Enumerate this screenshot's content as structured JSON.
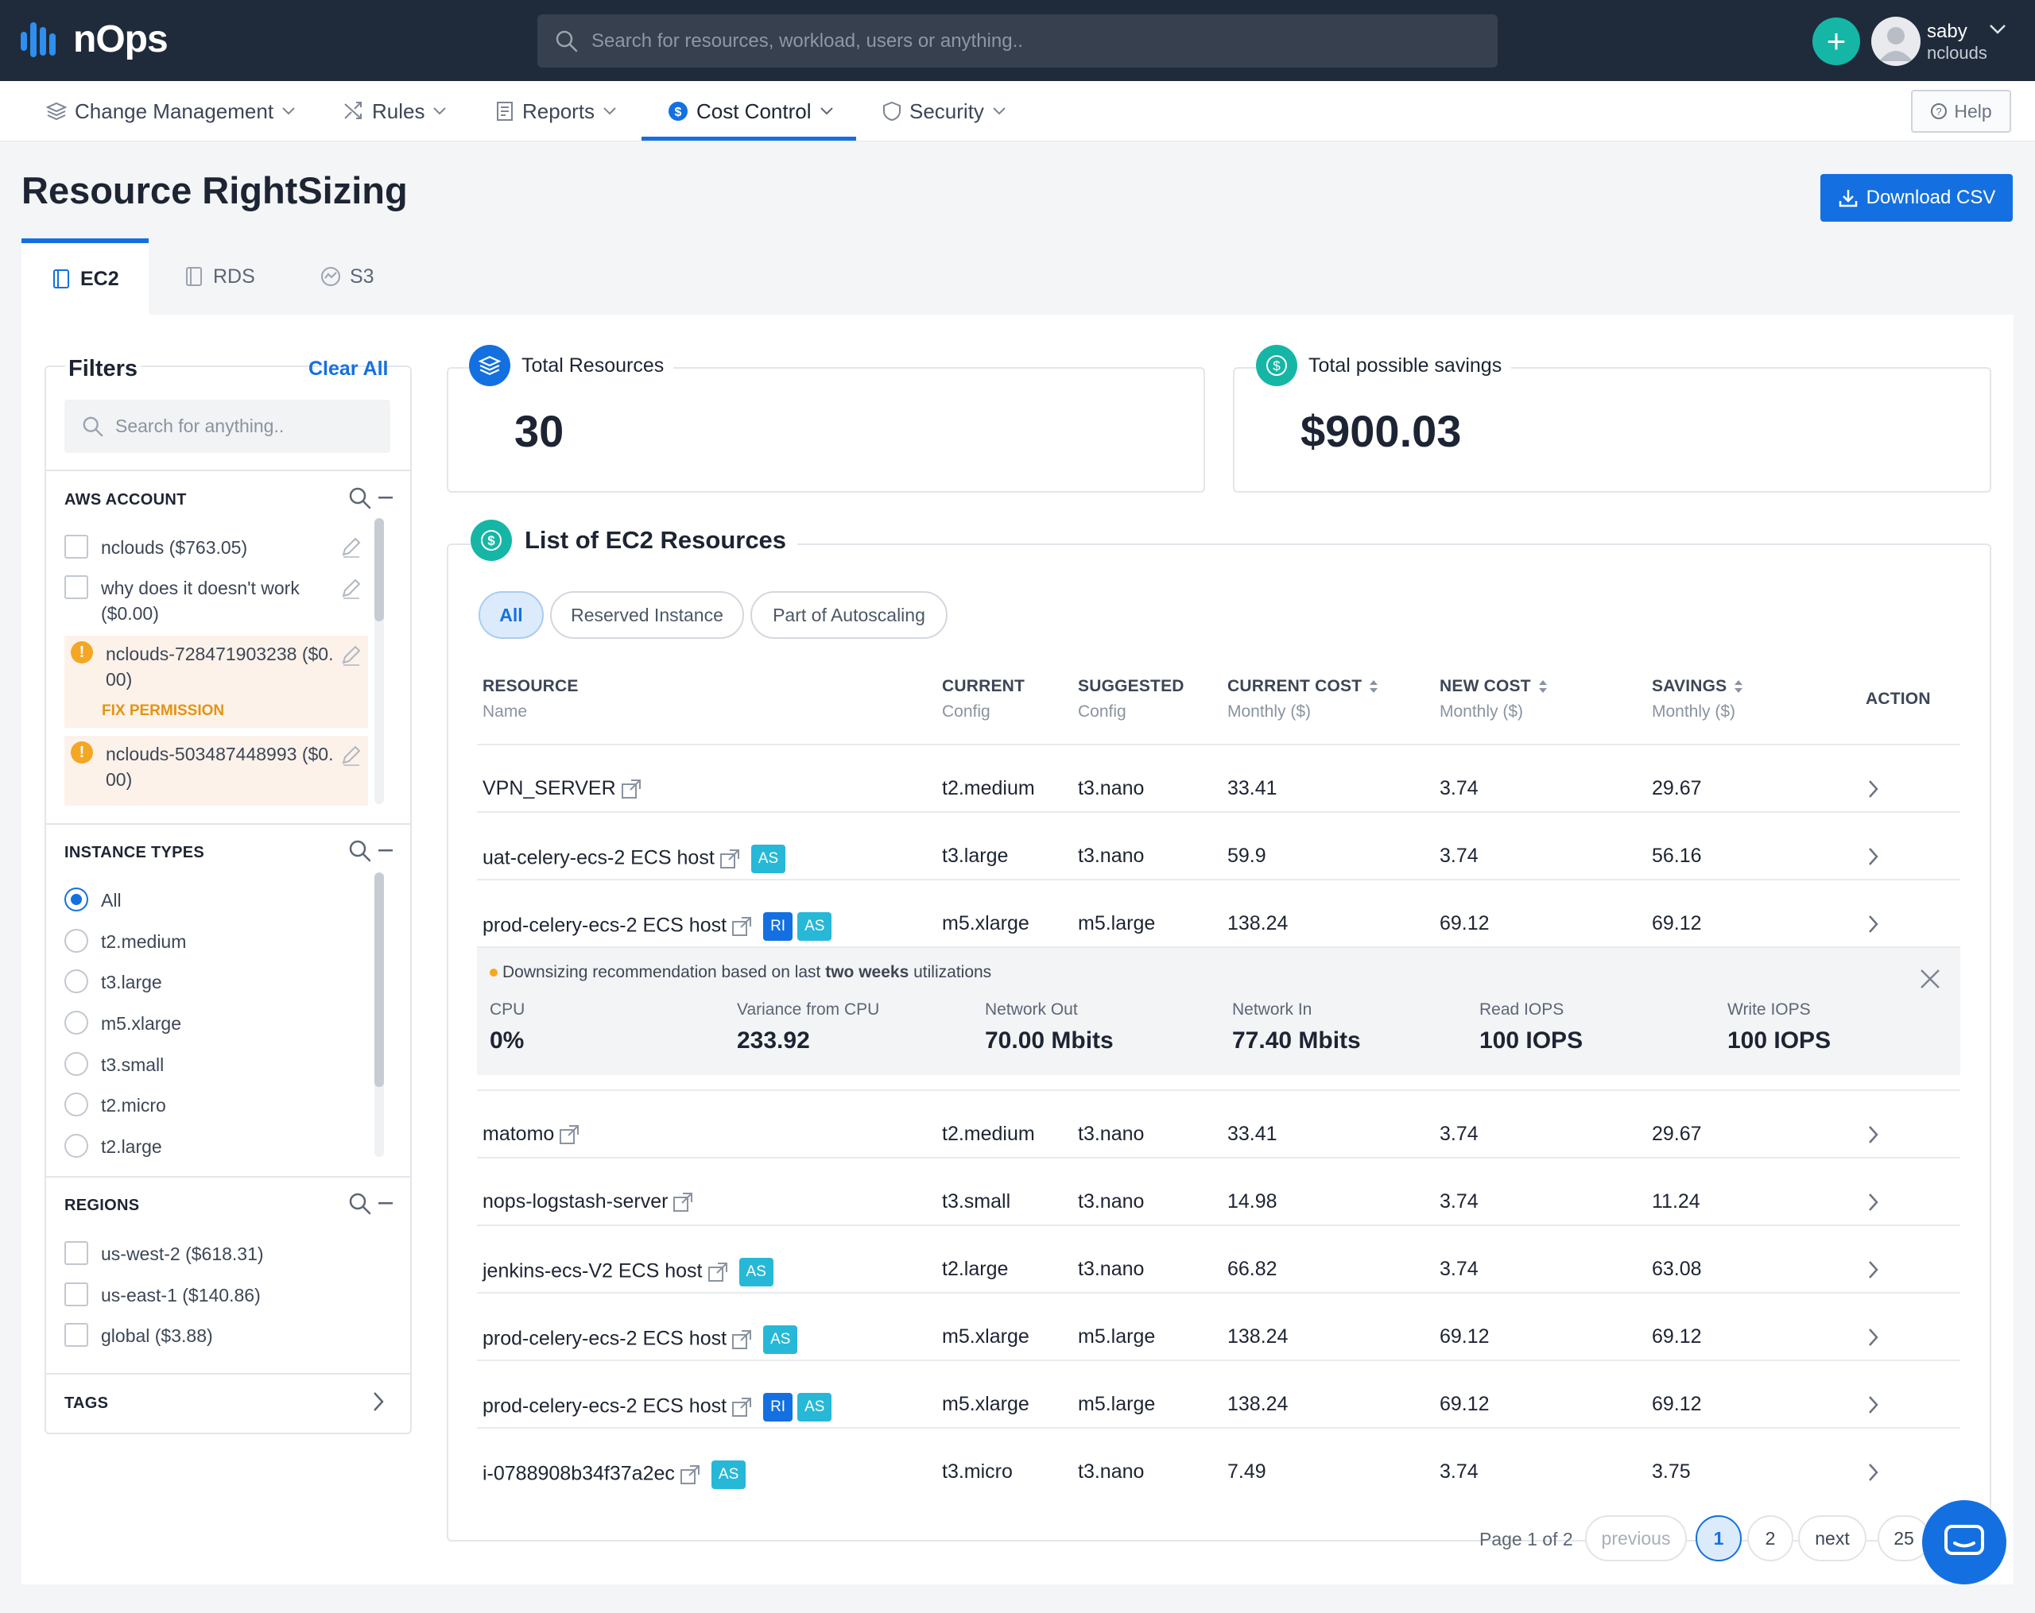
{
  "app": {
    "name": "nOps"
  },
  "search": {
    "placeholder": "Search for resources, workload, users or anything.."
  },
  "user": {
    "name": "saby",
    "org": "nclouds"
  },
  "nav": {
    "items": [
      "Change Management",
      "Rules",
      "Reports",
      "Cost Control",
      "Security"
    ],
    "active": "Cost Control",
    "help": "Help"
  },
  "page": {
    "title": "Resource RightSizing",
    "download": "Download CSV"
  },
  "tabs": [
    "EC2",
    "RDS",
    "S3"
  ],
  "filters": {
    "title": "Filters",
    "clear_all": "Clear All",
    "search_placeholder": "Search for anything..",
    "aws_account": {
      "title": "AWS ACCOUNT",
      "items": [
        {
          "label": "nclouds ($763.05)"
        },
        {
          "label_line1": "why does it doesn't work",
          "label_line2": "($0.00)"
        },
        {
          "label_line1": "nclouds-728471903238 ($0.",
          "label_line2": "00)",
          "warning": "FIX PERMISSION"
        },
        {
          "label_line1": "nclouds-503487448993 ($0.",
          "label_line2": "00)"
        }
      ]
    },
    "instance_types": {
      "title": "INSTANCE TYPES",
      "items": [
        "All",
        "t2.medium",
        "t3.large",
        "m5.xlarge",
        "t3.small",
        "t2.micro",
        "t2.large"
      ],
      "selected": "All"
    },
    "regions": {
      "title": "REGIONS",
      "items": [
        "us-west-2 ($618.31)",
        "us-east-1 ($140.86)",
        "global ($3.88)"
      ]
    },
    "tags": {
      "title": "TAGS"
    }
  },
  "stats": {
    "total_resources": {
      "label": "Total Resources",
      "value": "30"
    },
    "total_savings": {
      "label": "Total possible savings",
      "value": "$900.03"
    }
  },
  "list": {
    "title": "List of EC2 Resources",
    "pills": [
      "All",
      "Reserved Instance",
      "Part of Autoscaling"
    ],
    "headers": {
      "resource": "RESOURCE",
      "resource_sub": "Name",
      "current": "CURRENT",
      "current_sub": "Config",
      "suggested": "SUGGESTED",
      "suggested_sub": "Config",
      "current_cost": "CURRENT COST",
      "current_cost_sub": "Monthly ($)",
      "new_cost": "NEW COST",
      "new_cost_sub": "Monthly ($)",
      "savings": "SAVINGS",
      "savings_sub": "Monthly ($)",
      "action": "ACTION"
    },
    "rows": [
      {
        "name": "VPN_SERVER",
        "ri": false,
        "as": false,
        "current": "t2.medium",
        "suggested": "t3.nano",
        "current_cost": "33.41",
        "new_cost": "3.74",
        "savings": "29.67"
      },
      {
        "name": "uat-celery-ecs-2 ECS host",
        "ri": false,
        "as": true,
        "current": "t3.large",
        "suggested": "t3.nano",
        "current_cost": "59.9",
        "new_cost": "3.74",
        "savings": "56.16"
      },
      {
        "name": "prod-celery-ecs-2 ECS host",
        "ri": true,
        "as": true,
        "current": "m5.xlarge",
        "suggested": "m5.large",
        "current_cost": "138.24",
        "new_cost": "69.12",
        "savings": "69.12"
      },
      {
        "name": "matomo",
        "ri": false,
        "as": false,
        "current": "t2.medium",
        "suggested": "t3.nano",
        "current_cost": "33.41",
        "new_cost": "3.74",
        "savings": "29.67"
      },
      {
        "name": "nops-logstash-server",
        "ri": false,
        "as": false,
        "current": "t3.small",
        "suggested": "t3.nano",
        "current_cost": "14.98",
        "new_cost": "3.74",
        "savings": "11.24"
      },
      {
        "name": "jenkins-ecs-V2 ECS host",
        "ri": false,
        "as": true,
        "current": "t2.large",
        "suggested": "t3.nano",
        "current_cost": "66.82",
        "new_cost": "3.74",
        "savings": "63.08"
      },
      {
        "name": "prod-celery-ecs-2 ECS host",
        "ri": false,
        "as": true,
        "current": "m5.xlarge",
        "suggested": "m5.large",
        "current_cost": "138.24",
        "new_cost": "69.12",
        "savings": "69.12"
      },
      {
        "name": "prod-celery-ecs-2 ECS host",
        "ri": true,
        "as": true,
        "current": "m5.xlarge",
        "suggested": "m5.large",
        "current_cost": "138.24",
        "new_cost": "69.12",
        "savings": "69.12"
      },
      {
        "name": "i-0788908b34f37a2ec",
        "ri": false,
        "as": true,
        "current": "t3.micro",
        "suggested": "t3.nano",
        "current_cost": "7.49",
        "new_cost": "3.74",
        "savings": "3.75"
      }
    ],
    "tags": {
      "ri": "RI",
      "as": "AS"
    },
    "detail": {
      "note_prefix": "Downsizing recommendation based on last",
      "note_bold": "two weeks",
      "note_suffix": "utilizations",
      "metrics": [
        {
          "label": "CPU",
          "value": "0%"
        },
        {
          "label": "Variance from CPU",
          "value": "233.92"
        },
        {
          "label": "Network Out",
          "value": "70.00 Mbits"
        },
        {
          "label": "Network In",
          "value": "77.40 Mbits"
        },
        {
          "label": "Read IOPS",
          "value": "100 IOPS"
        },
        {
          "label": "Write IOPS",
          "value": "100 IOPS"
        }
      ]
    },
    "pagination": {
      "text": "Page 1 of 2",
      "previous": "previous",
      "pages": [
        "1",
        "2"
      ],
      "current": "1",
      "next": "next",
      "page_size": "25"
    }
  },
  "colors": {
    "brand_dark": "#1f2b3a",
    "accent": "#1470e0",
    "teal": "#16b6a6",
    "warning": "#f5a623",
    "autoscaling_tag": "#27b8d8"
  }
}
